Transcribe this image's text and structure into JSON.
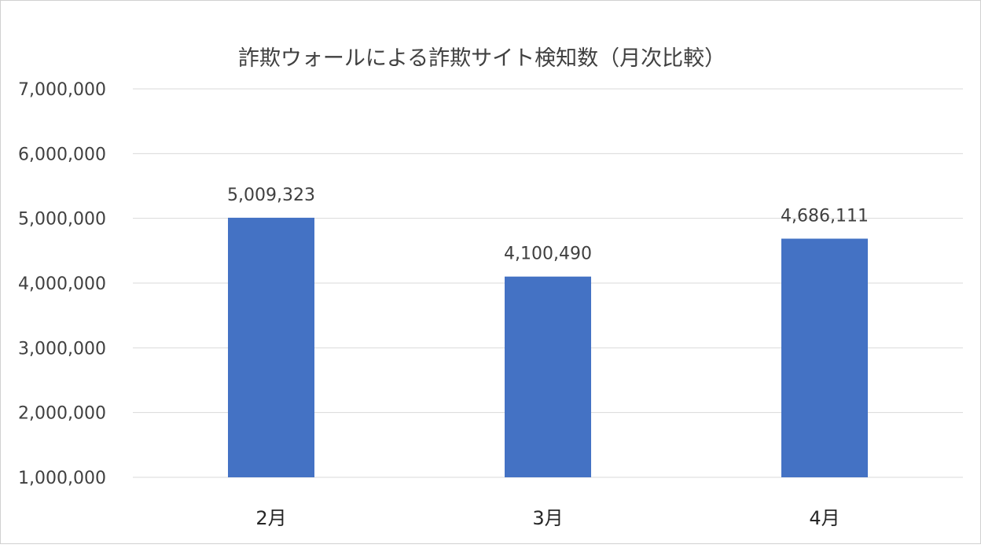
{
  "chart_data": {
    "type": "bar",
    "title": "詐欺ウォールによる詐欺サイト検知数（月次比較）",
    "categories": [
      "2月",
      "3月",
      "4月"
    ],
    "values": [
      5009323,
      4100490,
      4686111
    ],
    "data_labels": [
      "5,009,323",
      "4,100,490",
      "4,686,111"
    ],
    "ylim": [
      1000000,
      7000000
    ],
    "y_ticks": [
      1000000,
      2000000,
      3000000,
      4000000,
      5000000,
      6000000,
      7000000
    ],
    "y_tick_labels": [
      "1,000,000",
      "2,000,000",
      "3,000,000",
      "4,000,000",
      "5,000,000",
      "6,000,000",
      "7,000,000"
    ],
    "xlabel": "",
    "ylabel": "",
    "grid": true,
    "legend": "none",
    "colors": {
      "bar": "#4472c4",
      "gridline": "#d9d9d9",
      "text": "#404040"
    }
  }
}
